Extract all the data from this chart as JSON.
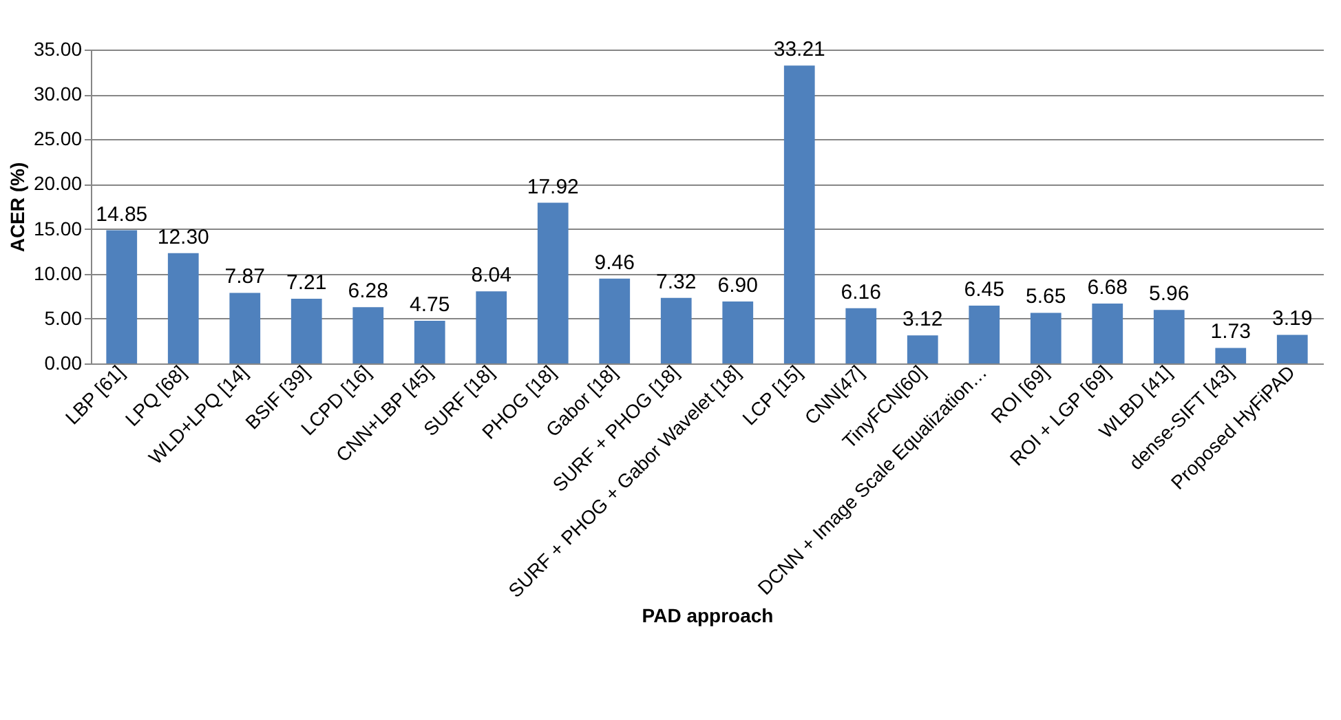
{
  "chart_data": {
    "type": "bar",
    "xlabel": "PAD approach",
    "ylabel": "ACER (%)",
    "categories": [
      "LBP [61]",
      "LPQ [68]",
      "WLD+LPQ [14]",
      "BSIF  [39]",
      "LCPD [16]",
      "CNN+LBP [45]",
      "SURF [18]",
      "PHOG [18]",
      "Gabor  [18]",
      "SURF +  PHOG [18]",
      "SURF + PHOG + Gabor Wavelet [18]",
      "LCP  [15]",
      "CNN[47]",
      "TinyFCN[60]",
      "DCNN + Image Scale Equalization…",
      "ROI [69]",
      "ROI + LGP [69]",
      "WLBD [41]",
      "dense-SIFT [43]",
      "Proposed HyFiPAD"
    ],
    "values": [
      14.85,
      12.3,
      7.87,
      7.21,
      6.28,
      4.75,
      8.04,
      17.92,
      9.46,
      7.32,
      6.9,
      33.21,
      6.16,
      3.12,
      6.45,
      5.65,
      6.68,
      5.96,
      1.73,
      3.19
    ],
    "value_labels": [
      "14.85",
      "12.30",
      "7.87",
      "7.21",
      "6.28",
      "4.75",
      "8.04",
      "17.92",
      "9.46",
      "7.32",
      "6.90",
      "33.21",
      "6.16",
      "3.12",
      "6.45",
      "5.65",
      "6.68",
      "5.96",
      "1.73",
      "3.19"
    ],
    "color": "#4f81bd",
    "ylim": [
      0,
      35
    ],
    "yticks": [
      {
        "value": 0,
        "label": "0.00"
      },
      {
        "value": 5,
        "label": "5.00"
      },
      {
        "value": 10,
        "label": "10.00"
      },
      {
        "value": 15,
        "label": "15.00"
      },
      {
        "value": 20,
        "label": "20.00"
      },
      {
        "value": 25,
        "label": "25.00"
      },
      {
        "value": 30,
        "label": "30.00"
      },
      {
        "value": 35,
        "label": "35.00"
      }
    ],
    "grid": "y"
  }
}
